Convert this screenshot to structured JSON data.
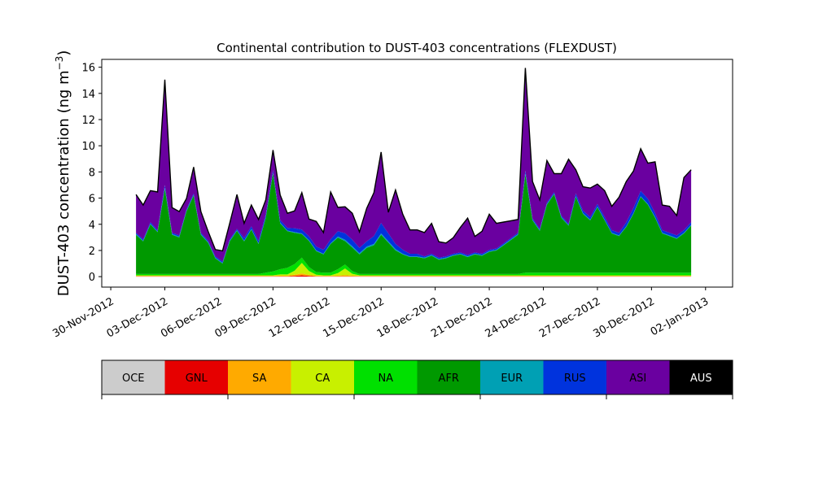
{
  "chart_data": {
    "type": "area",
    "stacked": true,
    "title": "Continental contribution to DUST-403 concentrations (FLEXDUST)",
    "ylabel_main": "DUST-403 concentration (ng m",
    "ylabel_sup": "−3",
    "ylabel_end": ")",
    "xlabel": "",
    "ylim": [
      -0.8,
      16.6
    ],
    "xlim": [
      -0.5,
      34.5
    ],
    "y_ticks": [
      0,
      2,
      4,
      6,
      8,
      10,
      12,
      14,
      16
    ],
    "x_ticks": [
      {
        "x": 0,
        "label": "30-Nov-2012"
      },
      {
        "x": 3,
        "label": "03-Dec-2012"
      },
      {
        "x": 6,
        "label": "06-Dec-2012"
      },
      {
        "x": 9,
        "label": "09-Dec-2012"
      },
      {
        "x": 12,
        "label": "12-Dec-2012"
      },
      {
        "x": 15,
        "label": "15-Dec-2012"
      },
      {
        "x": 18,
        "label": "18-Dec-2012"
      },
      {
        "x": 21,
        "label": "21-Dec-2012"
      },
      {
        "x": 24,
        "label": "24-Dec-2012"
      },
      {
        "x": 27,
        "label": "27-Dec-2012"
      },
      {
        "x": 30,
        "label": "30-Dec-2012"
      },
      {
        "x": 33,
        "label": "02-Jan-2013"
      }
    ],
    "x_unit": "days since 30-Nov-2012",
    "x": [
      1.4,
      1.8,
      2.2,
      2.6,
      3.0,
      3.4,
      3.8,
      4.2,
      4.6,
      5.0,
      5.4,
      5.8,
      6.2,
      6.6,
      7.0,
      7.4,
      7.8,
      8.2,
      8.6,
      9.0,
      9.4,
      9.8,
      10.2,
      10.6,
      11.0,
      11.4,
      11.8,
      12.2,
      12.6,
      13.0,
      13.4,
      13.8,
      14.2,
      14.6,
      15.0,
      15.4,
      15.8,
      16.2,
      16.6,
      17.0,
      17.4,
      17.8,
      18.2,
      18.6,
      19.0,
      19.4,
      19.8,
      20.2,
      20.6,
      21.0,
      21.4,
      21.8,
      22.2,
      22.6,
      23.0,
      23.4,
      23.8,
      24.2,
      24.6,
      25.0,
      25.4,
      25.8,
      26.2,
      26.6,
      27.0,
      27.4,
      27.8,
      28.2,
      28.6,
      29.0,
      29.4,
      29.8,
      30.2,
      30.6,
      31.0,
      31.4,
      31.8,
      32.2
    ],
    "series": [
      {
        "name": "GNL",
        "color": "#e60000",
        "values": [
          0.02,
          0.02,
          0.02,
          0.02,
          0.02,
          0.02,
          0.02,
          0.02,
          0.02,
          0.02,
          0.02,
          0.02,
          0.02,
          0.02,
          0.02,
          0.02,
          0.02,
          0.02,
          0.02,
          0.02,
          0.02,
          0.02,
          0.05,
          0.1,
          0.05,
          0.02,
          0.02,
          0.02,
          0.02,
          0.02,
          0.02,
          0.02,
          0.02,
          0.02,
          0.02,
          0.02,
          0.02,
          0.02,
          0.02,
          0.02,
          0.02,
          0.02,
          0.02,
          0.02,
          0.02,
          0.02,
          0.02,
          0.02,
          0.02,
          0.02,
          0.02,
          0.02,
          0.02,
          0.02,
          0.02,
          0.02,
          0.02,
          0.02,
          0.02,
          0.02,
          0.02,
          0.02,
          0.02,
          0.02,
          0.02,
          0.02,
          0.02,
          0.02,
          0.02,
          0.02,
          0.02,
          0.02,
          0.02,
          0.02,
          0.02,
          0.02,
          0.02,
          0.02
        ]
      },
      {
        "name": "SA",
        "color": "#ffaa00",
        "values": [
          0.03,
          0.03,
          0.03,
          0.03,
          0.03,
          0.03,
          0.03,
          0.03,
          0.03,
          0.03,
          0.03,
          0.03,
          0.03,
          0.03,
          0.03,
          0.03,
          0.03,
          0.03,
          0.03,
          0.03,
          0.05,
          0.05,
          0.1,
          0.15,
          0.08,
          0.03,
          0.03,
          0.03,
          0.05,
          0.1,
          0.05,
          0.03,
          0.03,
          0.03,
          0.03,
          0.03,
          0.03,
          0.03,
          0.03,
          0.03,
          0.03,
          0.03,
          0.03,
          0.03,
          0.03,
          0.03,
          0.03,
          0.03,
          0.03,
          0.03,
          0.03,
          0.03,
          0.03,
          0.03,
          0.03,
          0.03,
          0.03,
          0.03,
          0.03,
          0.03,
          0.03,
          0.03,
          0.03,
          0.03,
          0.03,
          0.03,
          0.03,
          0.03,
          0.03,
          0.03,
          0.03,
          0.03,
          0.03,
          0.03,
          0.03,
          0.03,
          0.03,
          0.03
        ]
      },
      {
        "name": "CA",
        "color": "#c8f000",
        "values": [
          0.05,
          0.05,
          0.05,
          0.05,
          0.05,
          0.05,
          0.05,
          0.05,
          0.05,
          0.05,
          0.05,
          0.05,
          0.05,
          0.05,
          0.05,
          0.05,
          0.05,
          0.05,
          0.05,
          0.05,
          0.1,
          0.1,
          0.3,
          0.8,
          0.3,
          0.1,
          0.05,
          0.05,
          0.2,
          0.5,
          0.15,
          0.05,
          0.05,
          0.05,
          0.05,
          0.05,
          0.05,
          0.05,
          0.05,
          0.05,
          0.05,
          0.05,
          0.05,
          0.05,
          0.05,
          0.05,
          0.05,
          0.05,
          0.05,
          0.05,
          0.05,
          0.05,
          0.05,
          0.05,
          0.05,
          0.05,
          0.05,
          0.05,
          0.05,
          0.05,
          0.05,
          0.05,
          0.05,
          0.05,
          0.05,
          0.05,
          0.05,
          0.05,
          0.05,
          0.05,
          0.05,
          0.05,
          0.05,
          0.05,
          0.05,
          0.05,
          0.05,
          0.05
        ]
      },
      {
        "name": "NA",
        "color": "#00e000",
        "values": [
          0.1,
          0.1,
          0.1,
          0.1,
          0.1,
          0.1,
          0.1,
          0.1,
          0.1,
          0.1,
          0.1,
          0.1,
          0.1,
          0.1,
          0.1,
          0.1,
          0.1,
          0.1,
          0.2,
          0.3,
          0.4,
          0.5,
          0.5,
          0.4,
          0.3,
          0.2,
          0.2,
          0.2,
          0.3,
          0.3,
          0.2,
          0.1,
          0.1,
          0.1,
          0.1,
          0.1,
          0.1,
          0.1,
          0.1,
          0.1,
          0.1,
          0.1,
          0.1,
          0.1,
          0.1,
          0.1,
          0.1,
          0.1,
          0.1,
          0.1,
          0.1,
          0.1,
          0.1,
          0.1,
          0.2,
          0.2,
          0.2,
          0.2,
          0.2,
          0.2,
          0.2,
          0.2,
          0.2,
          0.2,
          0.2,
          0.2,
          0.2,
          0.2,
          0.2,
          0.2,
          0.2,
          0.2,
          0.2,
          0.2,
          0.2,
          0.2,
          0.2,
          0.2
        ]
      },
      {
        "name": "AFR",
        "color": "#009900",
        "values": [
          3.0,
          2.5,
          3.8,
          3.2,
          6.5,
          3.0,
          2.8,
          4.8,
          6.0,
          3.0,
          2.4,
          1.2,
          0.8,
          2.5,
          3.3,
          2.5,
          3.4,
          2.3,
          4.2,
          7.5,
          3.5,
          2.8,
          2.4,
          1.8,
          2.0,
          1.6,
          1.4,
          2.2,
          2.4,
          1.8,
          1.8,
          1.5,
          2.0,
          2.2,
          3.0,
          2.4,
          1.8,
          1.5,
          1.3,
          1.3,
          1.2,
          1.4,
          1.1,
          1.2,
          1.4,
          1.5,
          1.3,
          1.5,
          1.4,
          1.7,
          1.8,
          2.2,
          2.6,
          3.0,
          7.5,
          4.0,
          3.2,
          5.2,
          6.0,
          4.2,
          3.6,
          5.8,
          4.5,
          4.0,
          5.0,
          4.0,
          3.0,
          2.8,
          3.5,
          4.5,
          5.8,
          5.2,
          4.2,
          3.0,
          2.8,
          2.6,
          3.0,
          3.6
        ]
      },
      {
        "name": "EUR",
        "color": "#00a0b4",
        "values": [
          0.05,
          0.05,
          0.05,
          0.05,
          0.1,
          0.05,
          0.05,
          0.05,
          0.05,
          0.05,
          0.05,
          0.05,
          0.05,
          0.05,
          0.05,
          0.05,
          0.05,
          0.05,
          0.05,
          0.05,
          0.05,
          0.05,
          0.05,
          0.05,
          0.05,
          0.05,
          0.05,
          0.05,
          0.1,
          0.1,
          0.1,
          0.1,
          0.1,
          0.1,
          0.1,
          0.1,
          0.1,
          0.05,
          0.05,
          0.05,
          0.05,
          0.05,
          0.05,
          0.05,
          0.05,
          0.05,
          0.05,
          0.05,
          0.05,
          0.05,
          0.05,
          0.05,
          0.05,
          0.05,
          0.1,
          0.05,
          0.05,
          0.05,
          0.05,
          0.05,
          0.05,
          0.05,
          0.05,
          0.05,
          0.05,
          0.05,
          0.05,
          0.05,
          0.05,
          0.05,
          0.05,
          0.05,
          0.05,
          0.05,
          0.05,
          0.05,
          0.05,
          0.05
        ]
      },
      {
        "name": "RUS",
        "color": "#0033dd",
        "values": [
          0.1,
          0.1,
          0.1,
          0.1,
          0.2,
          0.1,
          0.1,
          0.1,
          0.1,
          0.1,
          0.1,
          0.1,
          0.1,
          0.1,
          0.1,
          0.2,
          0.2,
          0.2,
          0.2,
          0.2,
          0.2,
          0.2,
          0.3,
          0.3,
          0.3,
          0.3,
          0.3,
          0.3,
          0.4,
          0.5,
          0.5,
          0.4,
          0.4,
          0.6,
          0.8,
          0.6,
          0.4,
          0.3,
          0.2,
          0.2,
          0.1,
          0.1,
          0.1,
          0.1,
          0.1,
          0.1,
          0.1,
          0.1,
          0.1,
          0.1,
          0.1,
          0.1,
          0.1,
          0.1,
          0.2,
          0.1,
          0.1,
          0.1,
          0.1,
          0.1,
          0.1,
          0.2,
          0.2,
          0.2,
          0.2,
          0.2,
          0.2,
          0.2,
          0.3,
          0.4,
          0.4,
          0.4,
          0.3,
          0.2,
          0.2,
          0.2,
          0.2,
          0.2
        ]
      },
      {
        "name": "ASI",
        "color": "#6a00a0",
        "values": [
          2.9,
          2.6,
          2.4,
          2.9,
          8.0,
          1.9,
          1.8,
          0.8,
          2.0,
          1.6,
          0.7,
          0.5,
          0.8,
          1.2,
          2.6,
          1.1,
          1.6,
          1.6,
          1.1,
          1.5,
          1.9,
          1.1,
          1.3,
          2.8,
          1.3,
          1.9,
          1.3,
          3.6,
          1.8,
          2.0,
          2.0,
          1.2,
          2.5,
          3.3,
          5.4,
          1.6,
          4.1,
          2.7,
          1.8,
          1.8,
          1.8,
          2.3,
          1.2,
          1.0,
          1.2,
          1.9,
          2.8,
          1.2,
          1.7,
          2.7,
          1.9,
          1.6,
          1.3,
          1.0,
          7.8,
          2.8,
          2.2,
          3.2,
          1.4,
          3.2,
          4.9,
          1.8,
          1.8,
          2.2,
          1.5,
          2.0,
          1.8,
          2.7,
          3.1,
          2.8,
          3.2,
          2.7,
          3.9,
          1.9,
          2.0,
          1.5,
          4.0,
          4.0
        ]
      },
      {
        "name": "AUS",
        "color": "#000000",
        "values": [
          0.02,
          0.02,
          0.02,
          0.02,
          0.05,
          0.02,
          0.02,
          0.02,
          0.02,
          0.02,
          0.02,
          0.02,
          0.02,
          0.02,
          0.02,
          0.02,
          0.02,
          0.02,
          0.02,
          0.02,
          0.02,
          0.02,
          0.02,
          0.02,
          0.02,
          0.02,
          0.02,
          0.02,
          0.02,
          0.02,
          0.02,
          0.02,
          0.02,
          0.02,
          0.02,
          0.02,
          0.02,
          0.02,
          0.02,
          0.02,
          0.02,
          0.02,
          0.02,
          0.02,
          0.02,
          0.02,
          0.02,
          0.02,
          0.02,
          0.02,
          0.02,
          0.02,
          0.02,
          0.02,
          0.05,
          0.02,
          0.02,
          0.02,
          0.02,
          0.02,
          0.02,
          0.02,
          0.02,
          0.02,
          0.02,
          0.02,
          0.02,
          0.02,
          0.02,
          0.02,
          0.02,
          0.02,
          0.02,
          0.02,
          0.02,
          0.02,
          0.02,
          0.02
        ]
      }
    ],
    "total_line_color": "#000000",
    "legend": {
      "placement": "below",
      "entries": [
        {
          "label": "OCE",
          "color": "#cccccc"
        },
        {
          "label": "GNL",
          "color": "#e60000"
        },
        {
          "label": "SA",
          "color": "#ffaa00"
        },
        {
          "label": "CA",
          "color": "#c8f000"
        },
        {
          "label": "NA",
          "color": "#00e000"
        },
        {
          "label": "AFR",
          "color": "#009900"
        },
        {
          "label": "EUR",
          "color": "#00a0b4"
        },
        {
          "label": "RUS",
          "color": "#0033dd"
        },
        {
          "label": "ASI",
          "color": "#6a00a0"
        },
        {
          "label": "AUS",
          "color": "#000000"
        }
      ]
    },
    "grid": false
  }
}
